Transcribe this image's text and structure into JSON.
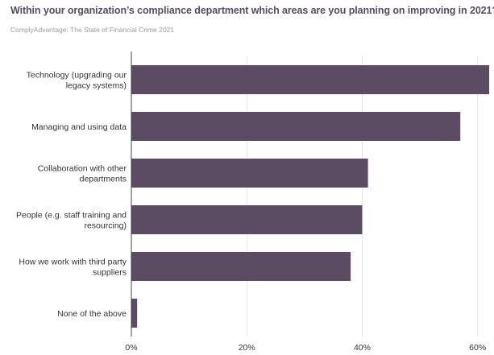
{
  "title": "Within your organization’s compliance department which areas are you planning on improving in 2021?",
  "subtitle": "ComplyAdvantage: The State of Financial Crime 2021",
  "colors": {
    "bar": "#5b4b63",
    "grid": "#e6e6e6",
    "axis": "#444444",
    "text": "#333333"
  },
  "chart_data": {
    "type": "bar",
    "orientation": "horizontal",
    "categories": [
      [
        "Technology (upgrading our",
        "legacy systems)"
      ],
      [
        "Managing and using data"
      ],
      [
        "Collaboration with other",
        "departments"
      ],
      [
        "People (e.g. staff training and",
        "resourcing)"
      ],
      [
        "How we work with third party",
        "suppliers"
      ],
      [
        "None of the above"
      ]
    ],
    "values": [
      62,
      57,
      41,
      40,
      38,
      1
    ],
    "xlim": [
      0,
      62
    ],
    "xticks": [
      0,
      20,
      40,
      60
    ],
    "xtick_labels": [
      "0%",
      "20%",
      "40%",
      "60%"
    ],
    "grid": true,
    "legend": "none"
  }
}
